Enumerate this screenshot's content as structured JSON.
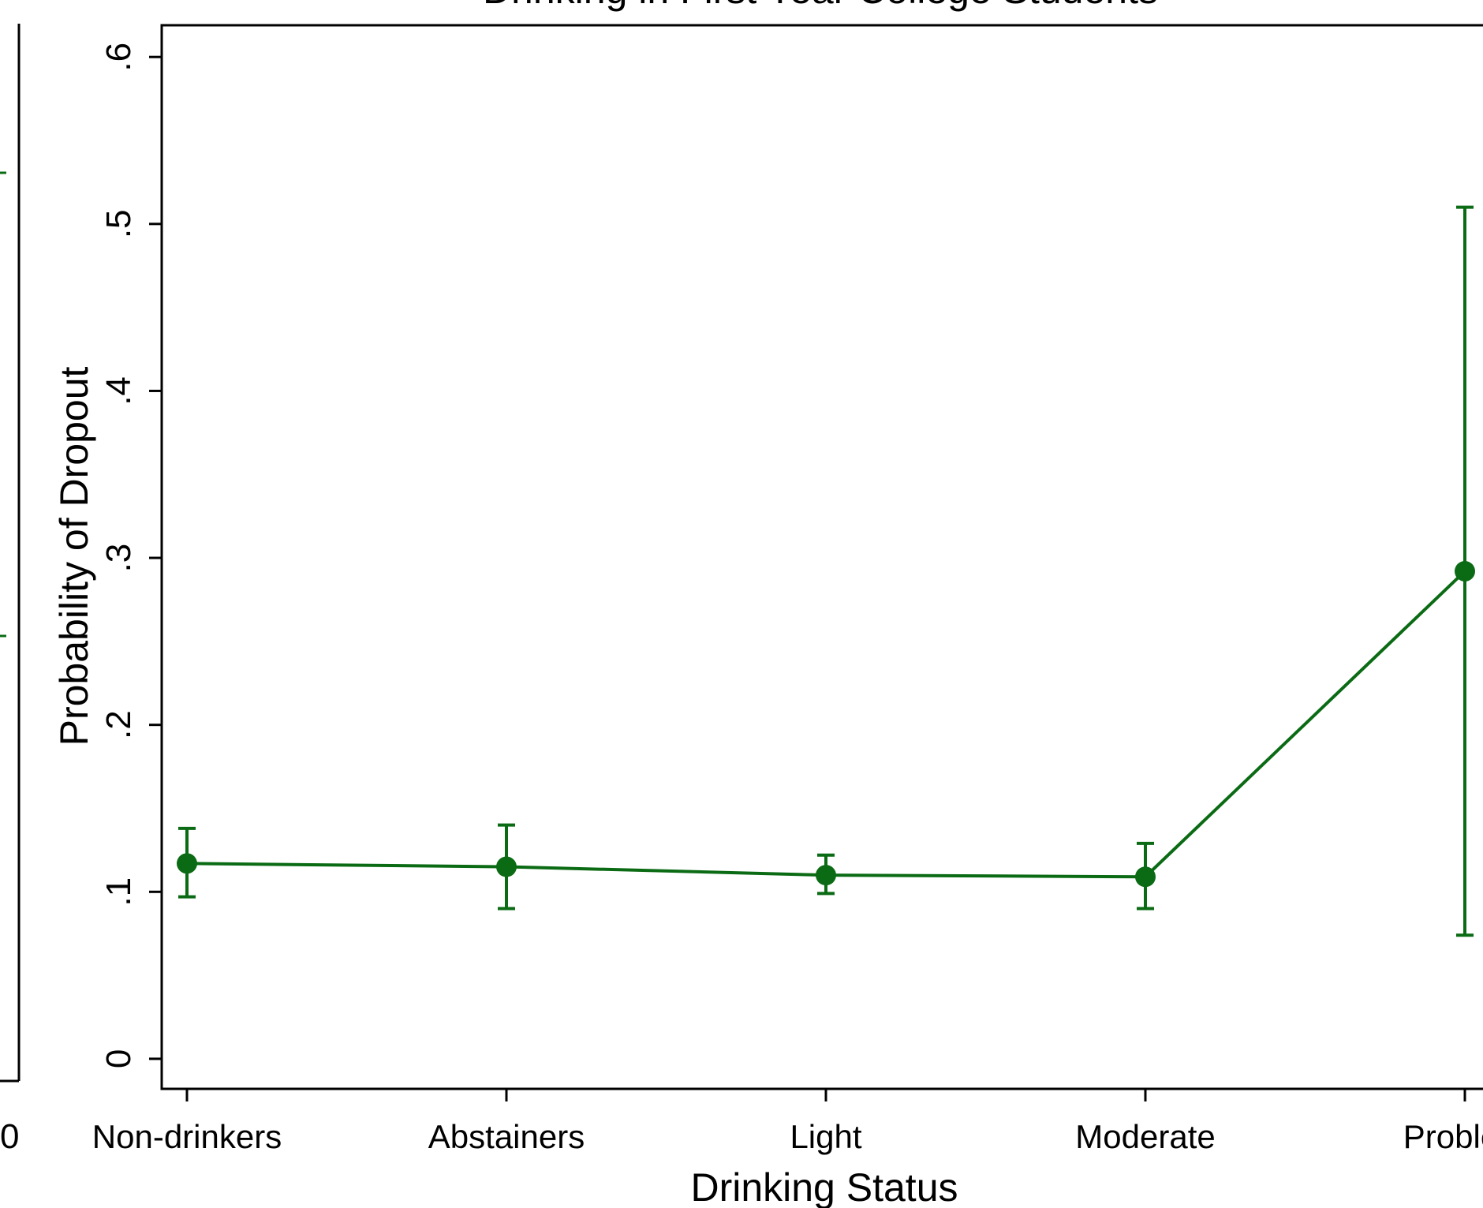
{
  "chart_data": {
    "type": "line",
    "title": "Drinking in First Year College Students",
    "xlabel": "Drinking Status",
    "ylabel": "Probability of Dropout",
    "categories": [
      "Non-drinkers",
      "Abstainers",
      "Light",
      "Moderate",
      "Problem"
    ],
    "yticks": [
      {
        "value": 0,
        "label": "0"
      },
      {
        "value": 0.1,
        "label": ".1"
      },
      {
        "value": 0.2,
        "label": ".2"
      },
      {
        "value": 0.3,
        "label": ".3"
      },
      {
        "value": 0.4,
        "label": ".4"
      },
      {
        "value": 0.5,
        "label": ".5"
      },
      {
        "value": 0.6,
        "label": ".6"
      }
    ],
    "ylim": [
      -0.018,
      0.619
    ],
    "grid": false,
    "legend": "none",
    "series": [
      {
        "values": [
          0.117,
          0.115,
          0.11,
          0.109,
          0.292
        ],
        "lower": [
          0.097,
          0.09,
          0.099,
          0.09,
          0.074
        ],
        "upper": [
          0.138,
          0.14,
          0.122,
          0.129,
          0.51
        ],
        "color": "#0b6b14"
      }
    ],
    "left_panel_fragment": {
      "x_tick_label": "0",
      "marker_color": "#0b6b14"
    }
  }
}
